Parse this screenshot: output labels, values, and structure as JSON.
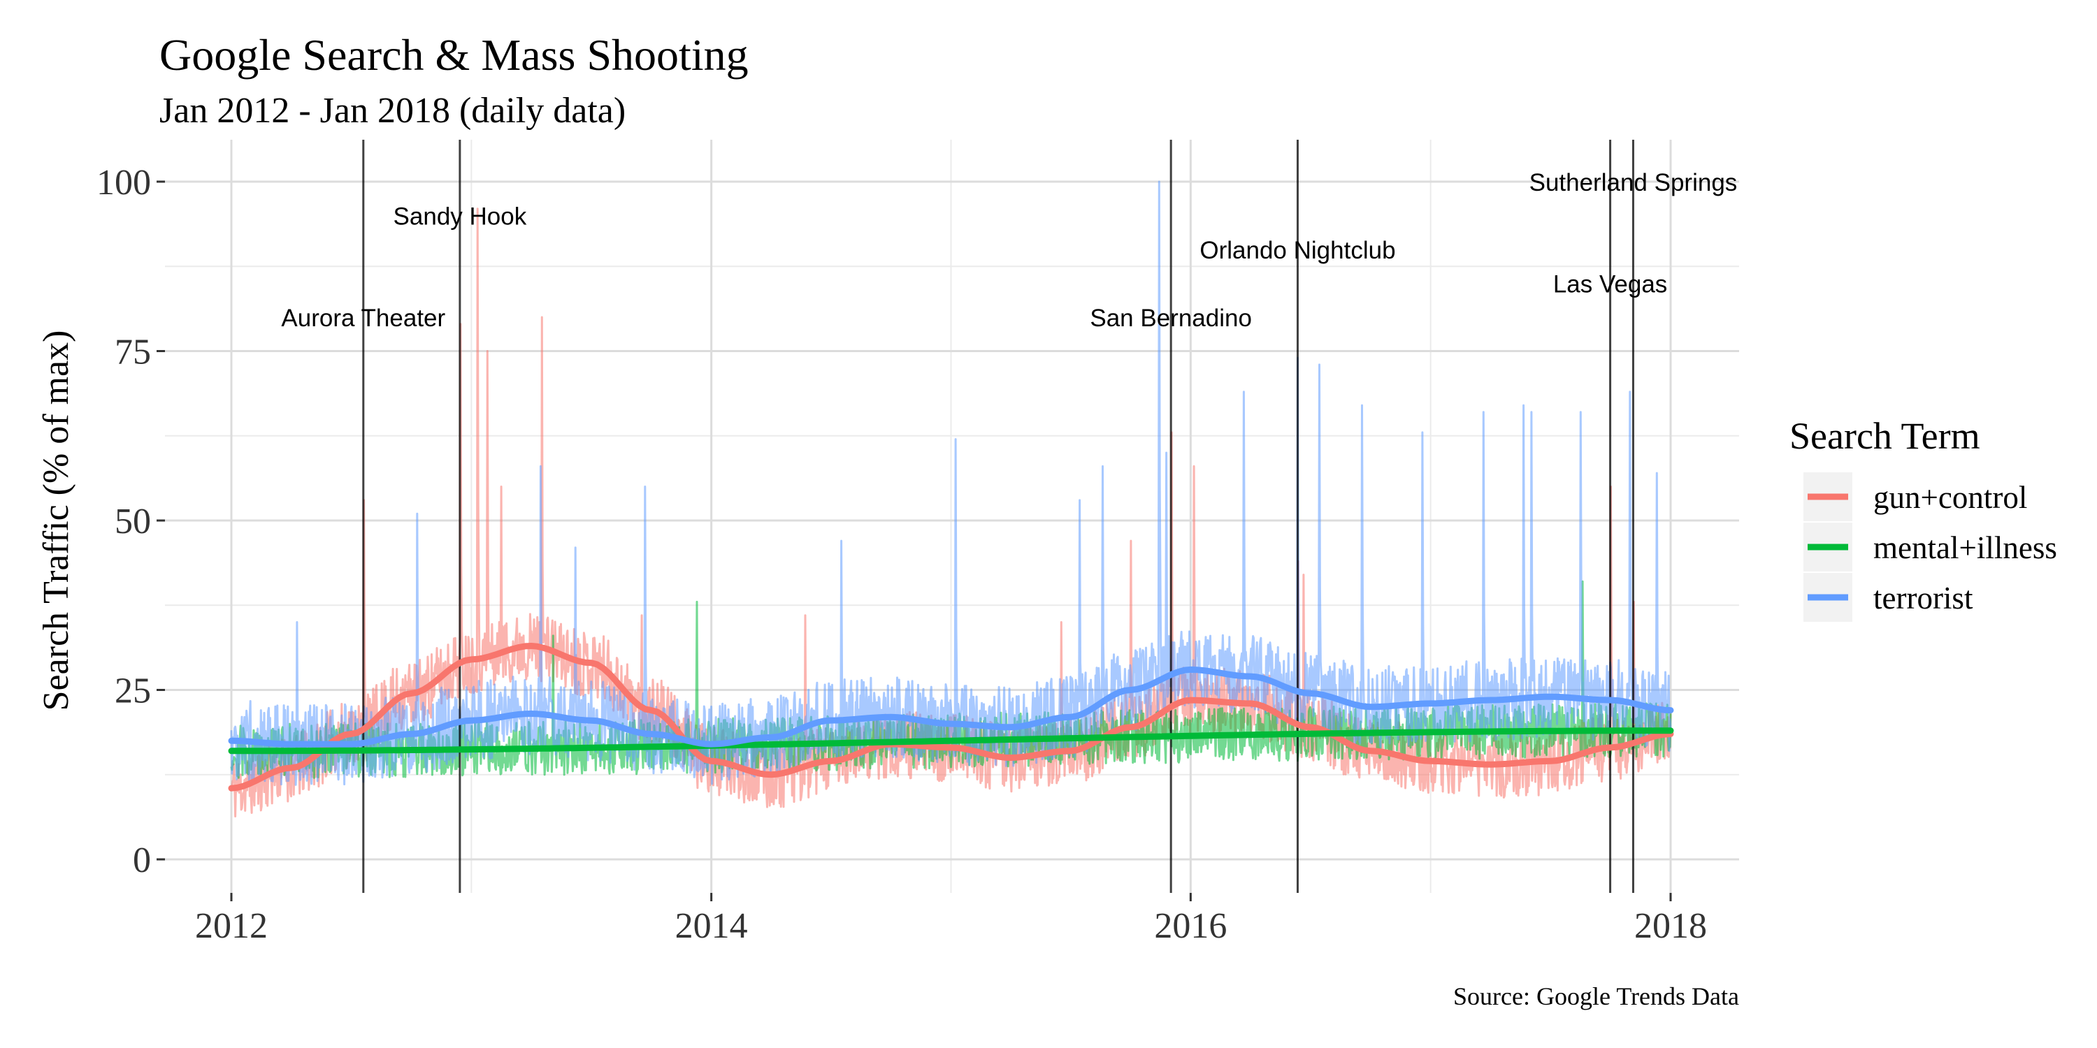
{
  "chart_data": {
    "type": "line",
    "title": "Google Search & Mass Shooting",
    "subtitle": "Jan 2012 - Jan 2018 (daily data)",
    "ylabel": "Search Traffic (% of max)",
    "xlabel": "",
    "caption": "Source: Google Trends Data",
    "xlim": [
      "2012-01-01",
      "2018-01-01"
    ],
    "ylim": [
      0,
      100
    ],
    "x_ticks": [
      "2012",
      "2014",
      "2016",
      "2018"
    ],
    "y_ticks": [
      0,
      25,
      50,
      75,
      100
    ],
    "grid": true,
    "legend": {
      "title": "Search Term",
      "position": "right",
      "entries": [
        "gun+control",
        "mental+illness",
        "terrorist"
      ]
    },
    "colors": {
      "gun+control": "#F8766D",
      "mental+illness": "#00BA38",
      "terrorist": "#619CFF"
    },
    "events": [
      {
        "label": "Aurora Theater",
        "date": "2012-07-20",
        "label_y": 80
      },
      {
        "label": "Sandy Hook",
        "date": "2012-12-14",
        "label_y": 95
      },
      {
        "label": "San Bernadino",
        "date": "2015-12-02",
        "label_y": 80
      },
      {
        "label": "Orlando Nightclub",
        "date": "2016-06-12",
        "label_y": 90
      },
      {
        "label": "Las Vegas",
        "date": "2017-10-01",
        "label_y": 85
      },
      {
        "label": "Sutherland Springs",
        "date": "2017-11-05",
        "label_y": 100
      }
    ],
    "smooth_series": [
      {
        "name": "gun+control",
        "x": [
          "2012-01-01",
          "2012-04-01",
          "2012-07-01",
          "2012-10-01",
          "2013-01-01",
          "2013-04-01",
          "2013-07-01",
          "2013-10-01",
          "2014-01-01",
          "2014-04-01",
          "2014-07-01",
          "2014-10-01",
          "2015-01-01",
          "2015-04-01",
          "2015-07-01",
          "2015-10-01",
          "2016-01-01",
          "2016-04-01",
          "2016-07-01",
          "2016-10-01",
          "2017-01-01",
          "2017-04-01",
          "2017-07-01",
          "2017-10-01",
          "2018-01-01"
        ],
        "y": [
          10.5,
          13.5,
          18.5,
          24.5,
          29.5,
          31.5,
          29,
          22,
          14.5,
          12.5,
          14.5,
          17,
          16.5,
          15,
          16,
          19.5,
          23.5,
          23,
          19.5,
          16,
          14.5,
          14,
          14.5,
          16.5,
          18.5
        ]
      },
      {
        "name": "mental+illness",
        "x": [
          "2012-01-01",
          "2018-01-01"
        ],
        "y": [
          16.0,
          19.0
        ]
      },
      {
        "name": "terrorist",
        "x": [
          "2012-01-01",
          "2012-04-01",
          "2012-07-01",
          "2012-10-01",
          "2013-01-01",
          "2013-04-01",
          "2013-07-01",
          "2013-10-01",
          "2014-01-01",
          "2014-04-01",
          "2014-07-01",
          "2014-10-01",
          "2015-01-01",
          "2015-04-01",
          "2015-07-01",
          "2015-10-01",
          "2016-01-01",
          "2016-04-01",
          "2016-07-01",
          "2016-10-01",
          "2017-01-01",
          "2017-04-01",
          "2017-07-01",
          "2017-10-01",
          "2018-01-01"
        ],
        "y": [
          17.5,
          17,
          17,
          18.5,
          20.5,
          21.5,
          20.5,
          18.5,
          17,
          18,
          20.5,
          21,
          20,
          19.5,
          21,
          25,
          28,
          27,
          24.5,
          22.5,
          23,
          23.5,
          24,
          23.5,
          22
        ]
      }
    ],
    "daily_series": [
      {
        "name": "gun+control",
        "noise": 5,
        "spikes": [
          {
            "date": "2012-07-21",
            "y": 53
          },
          {
            "date": "2012-12-15",
            "y": 79
          },
          {
            "date": "2013-01-10",
            "y": 96
          },
          {
            "date": "2013-01-25",
            "y": 75
          },
          {
            "date": "2013-02-15",
            "y": 55
          },
          {
            "date": "2013-04-18",
            "y": 80
          },
          {
            "date": "2013-09-17",
            "y": 36
          },
          {
            "date": "2014-05-24",
            "y": 36
          },
          {
            "date": "2015-06-18",
            "y": 35
          },
          {
            "date": "2015-10-02",
            "y": 47
          },
          {
            "date": "2015-12-03",
            "y": 63
          },
          {
            "date": "2016-01-06",
            "y": 58
          },
          {
            "date": "2016-06-13",
            "y": 44
          },
          {
            "date": "2016-06-21",
            "y": 42
          },
          {
            "date": "2017-10-02",
            "y": 55
          },
          {
            "date": "2017-11-06",
            "y": 38
          }
        ]
      },
      {
        "name": "mental+illness",
        "noise": 4,
        "spikes": [
          {
            "date": "2013-05-05",
            "y": 33
          },
          {
            "date": "2013-12-10",
            "y": 38
          },
          {
            "date": "2017-08-20",
            "y": 41
          }
        ]
      },
      {
        "name": "terrorist",
        "noise": 6,
        "spikes": [
          {
            "date": "2012-04-10",
            "y": 35
          },
          {
            "date": "2012-10-10",
            "y": 51
          },
          {
            "date": "2013-04-16",
            "y": 58
          },
          {
            "date": "2013-06-08",
            "y": 46
          },
          {
            "date": "2013-09-22",
            "y": 55
          },
          {
            "date": "2014-07-18",
            "y": 47
          },
          {
            "date": "2015-01-08",
            "y": 62
          },
          {
            "date": "2015-07-16",
            "y": 53
          },
          {
            "date": "2015-08-20",
            "y": 58
          },
          {
            "date": "2015-11-14",
            "y": 100
          },
          {
            "date": "2015-11-25",
            "y": 60
          },
          {
            "date": "2016-03-22",
            "y": 69
          },
          {
            "date": "2016-06-12",
            "y": 74
          },
          {
            "date": "2016-07-15",
            "y": 73
          },
          {
            "date": "2016-09-18",
            "y": 67
          },
          {
            "date": "2016-12-19",
            "y": 63
          },
          {
            "date": "2017-03-22",
            "y": 66
          },
          {
            "date": "2017-05-22",
            "y": 67
          },
          {
            "date": "2017-06-03",
            "y": 66
          },
          {
            "date": "2017-08-17",
            "y": 66
          },
          {
            "date": "2017-10-31",
            "y": 69
          },
          {
            "date": "2017-12-11",
            "y": 57
          }
        ]
      }
    ]
  }
}
